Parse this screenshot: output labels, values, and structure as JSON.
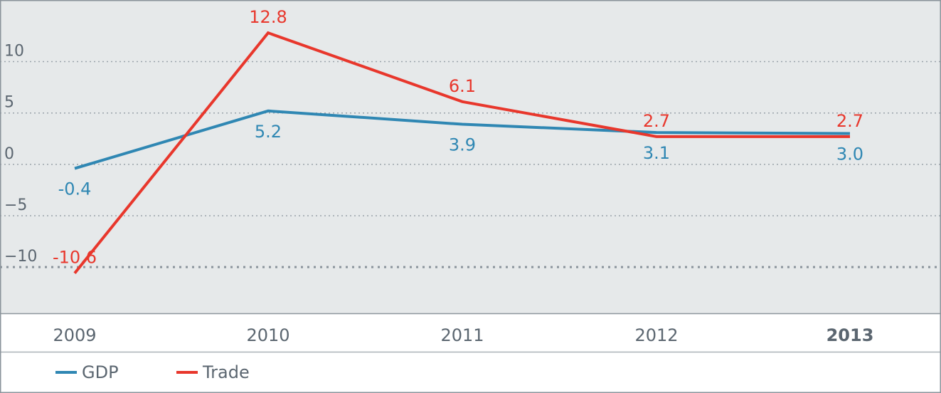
{
  "chart_data": {
    "type": "line",
    "categories": [
      "2009",
      "2010",
      "2011",
      "2012",
      "2013"
    ],
    "highlight_category": "2013",
    "ylim": [
      -14.5,
      16
    ],
    "yticks": [
      10,
      5,
      0,
      -5,
      -10
    ],
    "ytick_labels": [
      "10",
      "5",
      "0",
      "−5",
      "−10"
    ],
    "grid": "dotted",
    "legend_position": "bottom-left",
    "series": [
      {
        "name": "GDP",
        "color": "#2f87b3",
        "values": [
          -0.4,
          5.2,
          3.9,
          3.1,
          3.0
        ],
        "labels": [
          "-0.4",
          "5.2",
          "3.9",
          "3.1",
          "3.0"
        ],
        "label_position": "below"
      },
      {
        "name": "Trade",
        "color": "#e8372c",
        "values": [
          -10.6,
          12.8,
          6.1,
          2.7,
          2.7
        ],
        "labels": [
          "-10.6",
          "12.8",
          "6.1",
          "2.7",
          "2.7"
        ],
        "label_position": "above"
      }
    ]
  }
}
